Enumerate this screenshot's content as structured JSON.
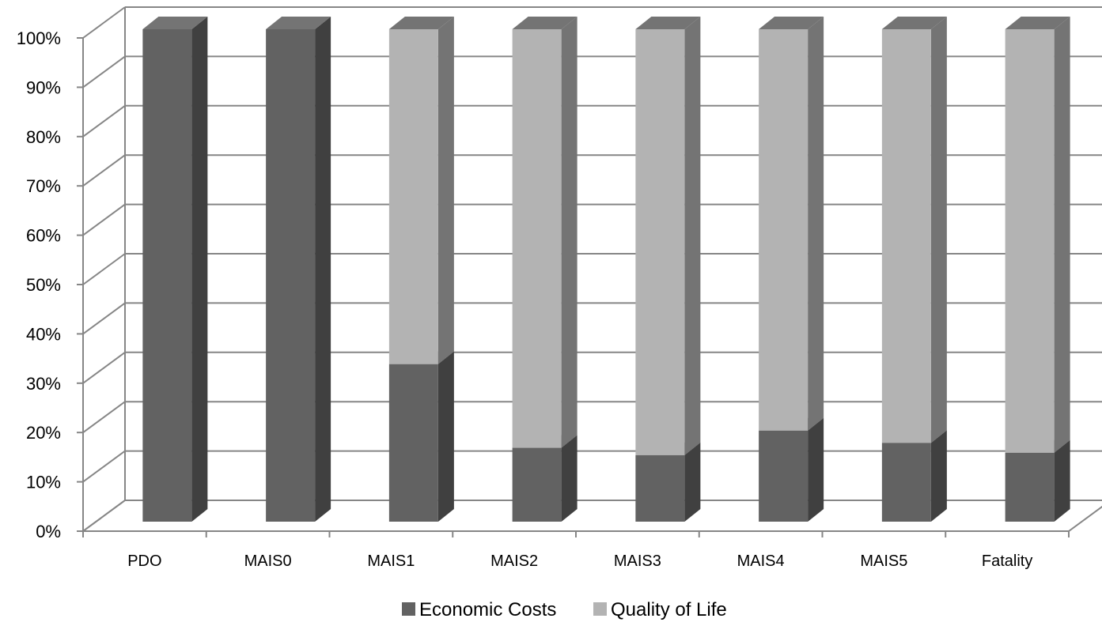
{
  "chart_data": {
    "type": "bar",
    "stacked": true,
    "percent_stacked": true,
    "three_d": true,
    "categories": [
      "PDO",
      "MAIS0",
      "MAIS1",
      "MAIS2",
      "MAIS3",
      "MAIS4",
      "MAIS5",
      "Fatality"
    ],
    "series": [
      {
        "name": "Economic Costs",
        "values": [
          100,
          100,
          32,
          15,
          13.5,
          18.5,
          16,
          14
        ],
        "color": "#626262"
      },
      {
        "name": "Quality of Life",
        "values": [
          0,
          0,
          68,
          85,
          86.5,
          81.5,
          84,
          86
        ],
        "color": "#b3b3b3"
      }
    ],
    "y_ticks": [
      "0%",
      "10%",
      "20%",
      "30%",
      "40%",
      "50%",
      "60%",
      "70%",
      "80%",
      "90%",
      "100%"
    ],
    "ylim": [
      0,
      100
    ],
    "grid": true,
    "legend_position": "bottom",
    "title": "",
    "xlabel": "",
    "ylabel": ""
  }
}
